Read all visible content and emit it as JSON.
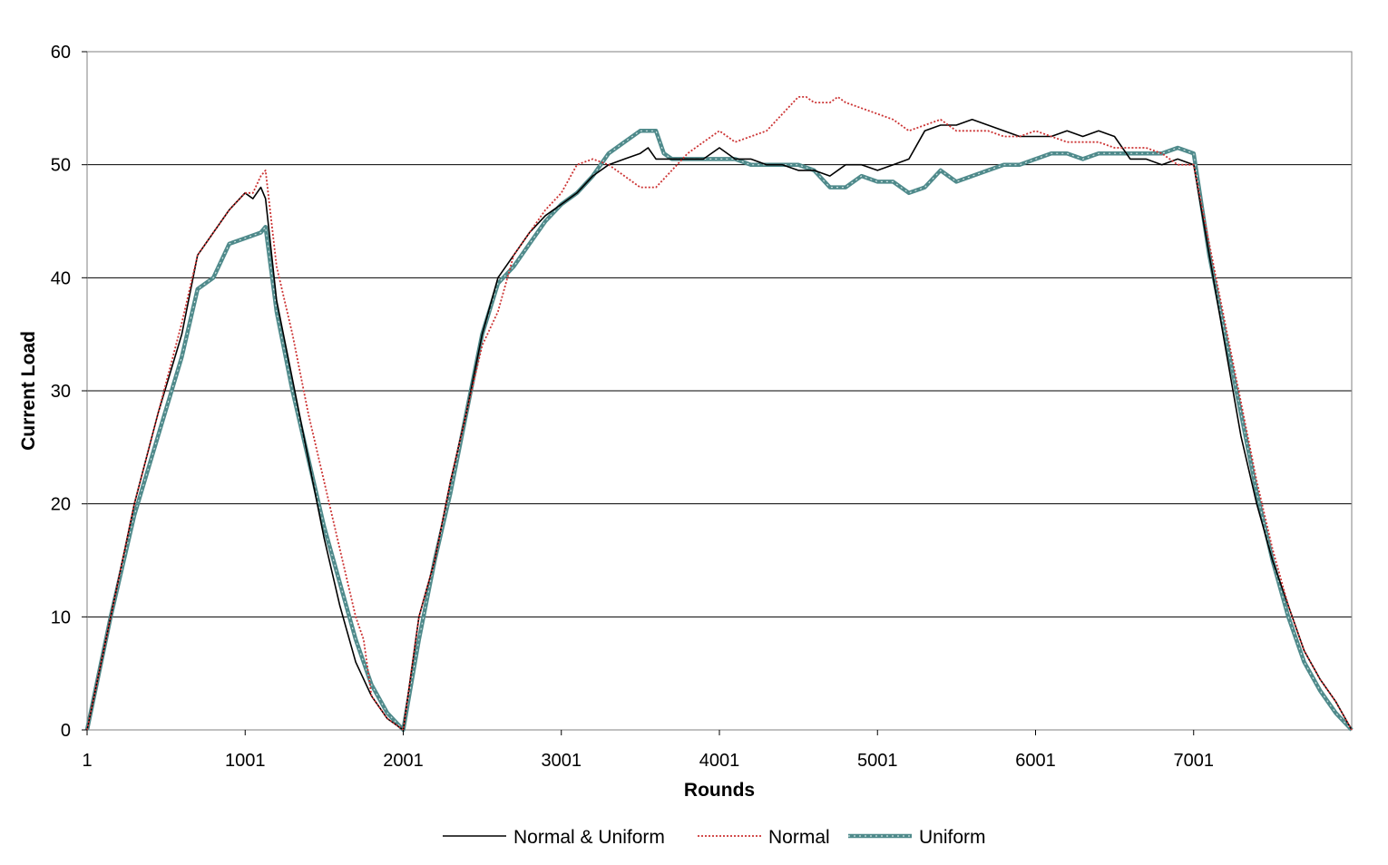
{
  "chart_data": {
    "type": "line",
    "xlabel": "Rounds",
    "ylabel": "Current Load",
    "xlim": [
      1,
      8001
    ],
    "ylim": [
      0,
      60
    ],
    "x_ticks": [
      1,
      1001,
      2001,
      3001,
      4001,
      5001,
      6001,
      7001
    ],
    "y_ticks": [
      0,
      10,
      20,
      30,
      40,
      50,
      60
    ],
    "grid": "horizontal",
    "legend_position": "bottom",
    "colors": {
      "normal_uniform": "#000000",
      "normal": "#cc3333",
      "uniform": "#4f8a8b"
    },
    "series": [
      {
        "name": "Normal & Uniform",
        "style": "solid-thin",
        "x": [
          1,
          150,
          300,
          450,
          600,
          700,
          800,
          900,
          1000,
          1050,
          1100,
          1130,
          1200,
          1300,
          1400,
          1500,
          1600,
          1700,
          1800,
          1900,
          2001,
          2100,
          2200,
          2300,
          2400,
          2500,
          2600,
          2700,
          2800,
          2900,
          3001,
          3100,
          3200,
          3300,
          3400,
          3500,
          3550,
          3600,
          3700,
          3800,
          3900,
          4001,
          4100,
          4200,
          4300,
          4400,
          4500,
          4600,
          4700,
          4800,
          4900,
          5001,
          5100,
          5200,
          5300,
          5400,
          5500,
          5600,
          5700,
          5800,
          5900,
          6001,
          6100,
          6200,
          6300,
          6400,
          6500,
          6600,
          6700,
          6800,
          6900,
          7001,
          7100,
          7200,
          7300,
          7400,
          7500,
          7600,
          7700,
          7800,
          7900,
          8001
        ],
        "y": [
          0,
          10,
          20,
          28,
          35,
          42,
          44,
          46,
          47.5,
          47,
          48,
          47,
          38,
          31,
          24,
          17,
          11,
          6,
          3,
          1,
          0,
          10,
          15,
          22,
          28,
          35,
          40,
          42,
          44,
          45.5,
          46.5,
          47.5,
          49,
          50,
          50.5,
          51,
          51.5,
          50.5,
          50.5,
          50.5,
          50.5,
          51.5,
          50.5,
          50.5,
          50,
          50,
          49.5,
          49.5,
          49,
          50,
          50,
          49.5,
          50,
          50.5,
          53,
          53.5,
          53.5,
          54,
          53.5,
          53,
          52.5,
          52.5,
          52.5,
          53,
          52.5,
          53,
          52.5,
          50.5,
          50.5,
          50,
          50.5,
          50,
          42,
          34,
          26,
          20,
          15,
          11,
          7,
          4.5,
          2.5,
          0
        ]
      },
      {
        "name": "Normal",
        "style": "dotted",
        "x": [
          1,
          150,
          300,
          450,
          600,
          700,
          800,
          900,
          1000,
          1050,
          1100,
          1130,
          1200,
          1300,
          1400,
          1500,
          1600,
          1700,
          1750,
          1800,
          1900,
          2001,
          2100,
          2200,
          2300,
          2400,
          2500,
          2600,
          2700,
          2800,
          2900,
          3001,
          3100,
          3200,
          3300,
          3400,
          3500,
          3600,
          3700,
          3800,
          3900,
          4001,
          4100,
          4200,
          4300,
          4400,
          4500,
          4550,
          4600,
          4700,
          4750,
          4800,
          4900,
          5001,
          5100,
          5200,
          5300,
          5400,
          5500,
          5600,
          5700,
          5800,
          5900,
          6001,
          6100,
          6200,
          6300,
          6400,
          6500,
          6600,
          6700,
          6800,
          6900,
          7001,
          7100,
          7200,
          7300,
          7400,
          7500,
          7600,
          7700,
          7800,
          7900,
          8001
        ],
        "y": [
          0,
          10,
          20,
          28,
          36,
          42,
          44,
          46,
          47.5,
          47.5,
          49,
          49.5,
          41,
          35,
          28,
          22,
          16,
          10,
          8,
          3,
          1,
          0,
          10,
          15,
          22,
          28,
          34,
          37,
          42,
          44,
          46,
          47.5,
          50,
          50.5,
          50,
          49,
          48,
          48,
          49.5,
          51,
          52,
          53,
          52,
          52.5,
          53,
          54.5,
          56,
          56,
          55.5,
          55.5,
          56,
          55.5,
          55,
          54.5,
          54,
          53,
          53.5,
          54,
          53,
          53,
          53,
          52.5,
          52.5,
          53,
          52.5,
          52,
          52,
          52,
          51.5,
          51.5,
          51.5,
          51,
          50,
          50,
          43,
          36,
          29,
          22,
          16,
          11,
          7,
          4.5,
          2.5,
          0
        ]
      },
      {
        "name": "Uniform",
        "style": "thick",
        "x": [
          1,
          150,
          300,
          450,
          600,
          700,
          800,
          900,
          1000,
          1100,
          1130,
          1200,
          1300,
          1400,
          1500,
          1600,
          1700,
          1800,
          1900,
          2001,
          2100,
          2200,
          2300,
          2400,
          2500,
          2600,
          2700,
          2800,
          2900,
          3001,
          3100,
          3200,
          3300,
          3400,
          3500,
          3600,
          3650,
          3700,
          3800,
          3900,
          4001,
          4100,
          4200,
          4300,
          4400,
          4500,
          4600,
          4700,
          4800,
          4900,
          5001,
          5100,
          5200,
          5300,
          5400,
          5500,
          5600,
          5700,
          5800,
          5900,
          6001,
          6100,
          6200,
          6300,
          6400,
          6500,
          6600,
          6700,
          6800,
          6900,
          7001,
          7100,
          7200,
          7300,
          7400,
          7500,
          7600,
          7700,
          7800,
          7900,
          8001
        ],
        "y": [
          0,
          10,
          19,
          26,
          33,
          39,
          40,
          43,
          43.5,
          44,
          44.5,
          37,
          30,
          24,
          18,
          13,
          8,
          4,
          1.5,
          0,
          8,
          15,
          21,
          28,
          35,
          39.5,
          41,
          43,
          45,
          46.5,
          47.5,
          49,
          51,
          52,
          53,
          53,
          51,
          50.5,
          50.5,
          50.5,
          50.5,
          50.5,
          50,
          50,
          50,
          50,
          49.5,
          48,
          48,
          49,
          48.5,
          48.5,
          47.5,
          48,
          49.5,
          48.5,
          49,
          49.5,
          50,
          50,
          50.5,
          51,
          51,
          50.5,
          51,
          51,
          51,
          51,
          51,
          51.5,
          51,
          42,
          35,
          28,
          21,
          15,
          10,
          6,
          3.5,
          1.5,
          0
        ]
      }
    ]
  }
}
